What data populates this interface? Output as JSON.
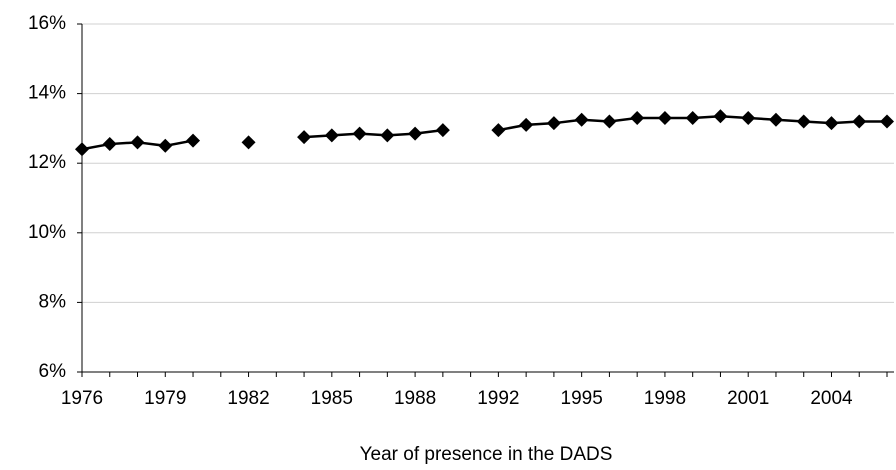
{
  "chart_data": {
    "type": "line",
    "x_label": "Year of presence in the DADS",
    "categories": [
      "1976",
      null,
      null,
      "1979",
      null,
      null,
      "1982",
      null,
      null,
      "1985",
      null,
      null,
      "1988",
      null,
      null,
      "1992",
      null,
      null,
      "1995",
      null,
      null,
      "1998",
      null,
      null,
      "2001",
      null,
      null,
      "2004",
      null,
      null
    ],
    "values": [
      12.4,
      12.55,
      12.6,
      12.5,
      12.65,
      null,
      12.6,
      null,
      12.75,
      12.8,
      12.85,
      12.8,
      12.85,
      12.95,
      null,
      12.95,
      13.1,
      13.15,
      13.25,
      13.2,
      13.3,
      13.3,
      13.3,
      13.35,
      13.3,
      13.25,
      13.2,
      13.15,
      13.2,
      13.2
    ],
    "color": "#000000",
    "ylim": [
      6,
      16
    ],
    "yticks": [
      {
        "value": 6,
        "label": "6%"
      },
      {
        "value": 8,
        "label": "8%"
      },
      {
        "value": 10,
        "label": "10%"
      },
      {
        "value": 12,
        "label": "12%"
      },
      {
        "value": 14,
        "label": "14%"
      },
      {
        "value": 16,
        "label": "16%"
      }
    ],
    "grid": true
  }
}
